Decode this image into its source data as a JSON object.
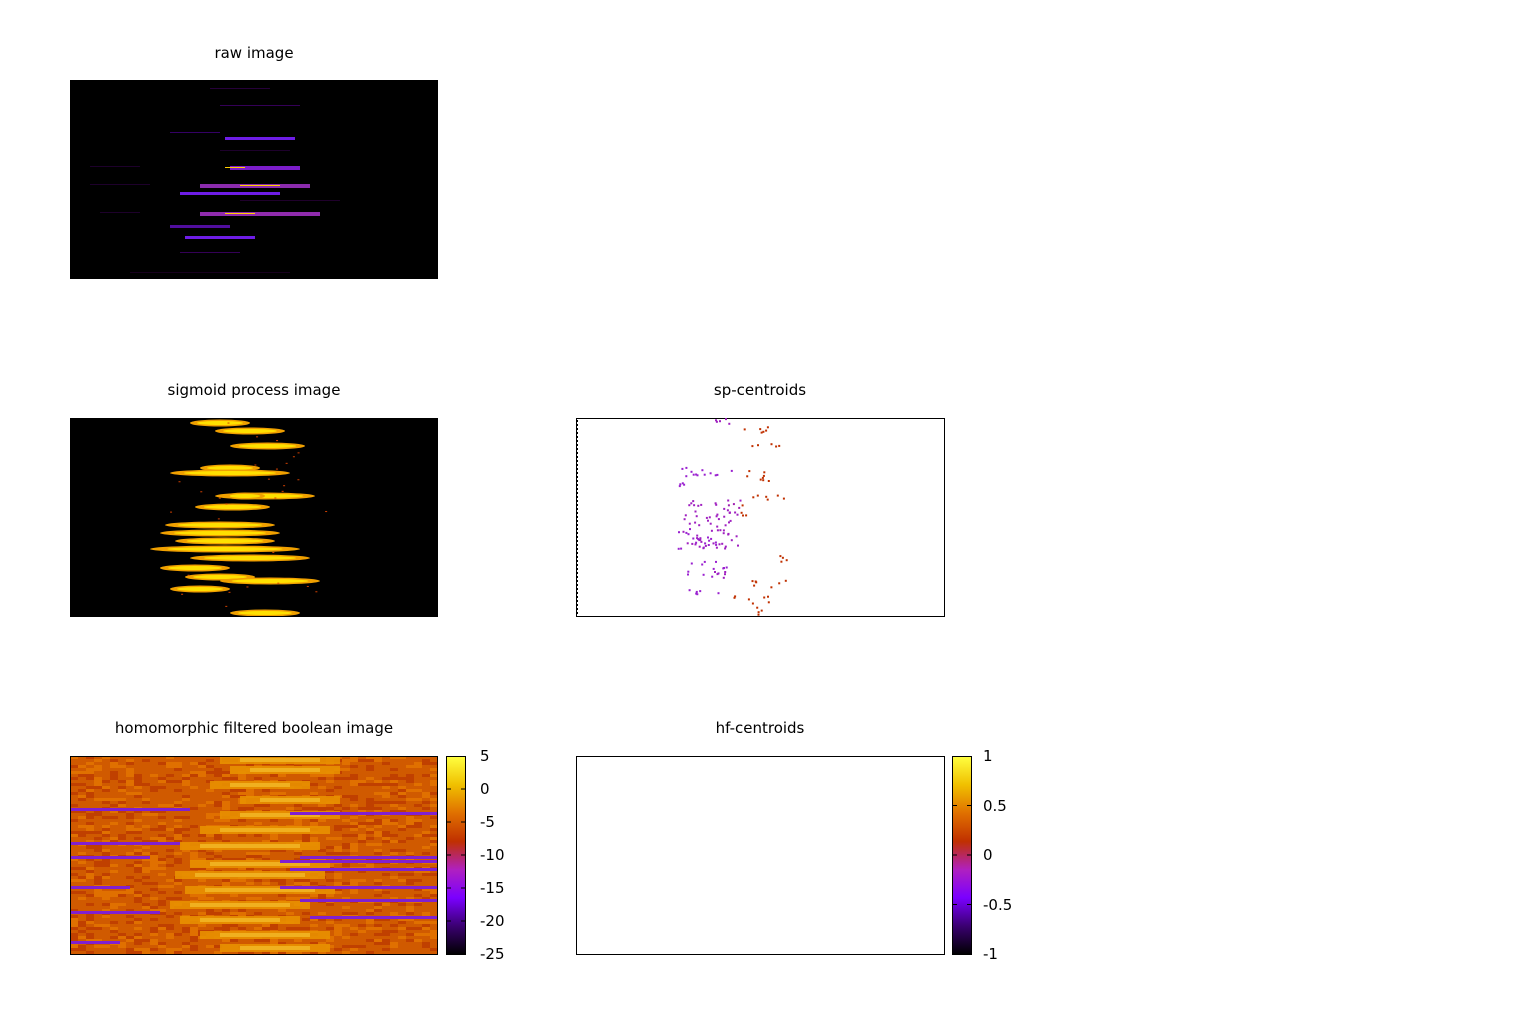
{
  "panels": {
    "raw": {
      "title": "raw image"
    },
    "sigmoid": {
      "title": "sigmoid process image"
    },
    "sp": {
      "title": "sp-centroids"
    },
    "homomorphic": {
      "title": "homomorphic filtered boolean image"
    },
    "hf": {
      "title": "hf-centroids"
    }
  },
  "colorbars": {
    "homomorphic": {
      "ticks": [
        "5",
        "0",
        "-5",
        "-10",
        "-15",
        "-20",
        "-25"
      ],
      "range": [
        -25,
        5
      ]
    },
    "hf": {
      "ticks": [
        "1",
        "0.5",
        "0",
        "-0.5",
        "-1"
      ],
      "range": [
        -1,
        1
      ]
    }
  },
  "colors": {
    "palette": [
      "#000000",
      "#3a0070",
      "#7a00ff",
      "#b020c0",
      "#d03000",
      "#e07000",
      "#f0c000",
      "#ffff40"
    ],
    "background": "#ffffff",
    "border": "#000000"
  },
  "chart_data": [
    {
      "type": "heatmap",
      "title": "raw image",
      "colorbar": false
    },
    {
      "type": "heatmap",
      "title": "sigmoid process image",
      "colorbar": false
    },
    {
      "type": "scatter",
      "title": "sp-centroids",
      "colorbar": false
    },
    {
      "type": "heatmap",
      "title": "homomorphic filtered boolean image",
      "colorbar": true,
      "zlim": [
        -25,
        5
      ]
    },
    {
      "type": "scatter",
      "title": "hf-centroids",
      "colorbar": true,
      "zlim": [
        -1,
        1
      ]
    }
  ]
}
